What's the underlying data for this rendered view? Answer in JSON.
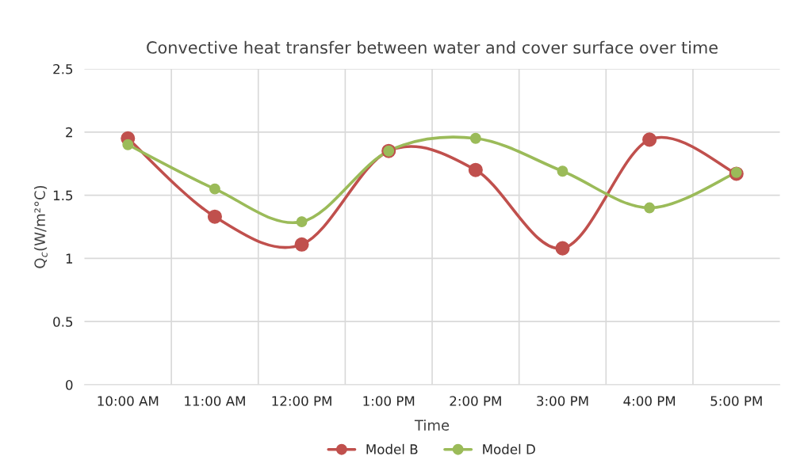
{
  "chart_data": {
    "type": "line",
    "title": "Convective heat transfer between water and cover surface over time",
    "xlabel": "Time",
    "ylabel": "Q$_{c}$(W/m²°C)",
    "categories": [
      "10:00 AM",
      "11:00 AM",
      "12:00 PM",
      "1:00 PM",
      "2:00 PM",
      "3:00 PM",
      "4:00 PM",
      "5:00 PM"
    ],
    "series": [
      {
        "name": "Model B",
        "color": "#c0504d",
        "values": [
          1.95,
          1.33,
          1.11,
          1.85,
          1.7,
          1.08,
          1.94,
          1.67
        ]
      },
      {
        "name": "Model D",
        "color": "#9bbb59",
        "values": [
          1.9,
          1.55,
          1.29,
          1.85,
          1.95,
          1.69,
          1.4,
          1.68
        ]
      }
    ],
    "ylim": [
      0,
      2.5
    ],
    "yticks": [
      0,
      0.5,
      1,
      1.5,
      2,
      2.5
    ],
    "grid": true,
    "legend": "bottom",
    "marker": "circle",
    "line_style": "solid"
  }
}
